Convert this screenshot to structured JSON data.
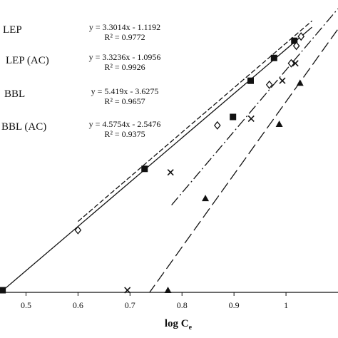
{
  "chart_data": {
    "type": "scatter",
    "title": "",
    "xlabel_main": "log C",
    "xlabel_sub": "e",
    "ylabel": "",
    "xlim": [
      0.45,
      1.1
    ],
    "ylim": [
      0.37,
      2.55
    ],
    "x_ticks": [
      0.5,
      0.6,
      0.7,
      0.8,
      0.9,
      1.0
    ],
    "x_tick_labels": [
      "0.5",
      "0.6",
      "0.7",
      "0.8",
      "0.9",
      "1"
    ],
    "grid": false,
    "legend_position": "top-left",
    "series": [
      {
        "name": "LEP",
        "marker": "filled-square",
        "line_style": "solid",
        "equation": "y = 3.3014x - 1.1192",
        "r2": "R² = 0.9772",
        "slope": 3.3014,
        "intercept": -1.1192,
        "fit_x_range": [
          0.45,
          1.05
        ],
        "x": [
          0.455,
          0.728,
          0.898,
          0.932,
          0.977,
          1.016
        ],
        "y": [
          0.386,
          1.291,
          1.678,
          1.948,
          2.118,
          2.246
        ]
      },
      {
        "name": "LEP (AC)",
        "marker": "open-diamond",
        "line_style": "short-dash",
        "equation": "y = 3.3236x - 1.0956",
        "r2": "R² = 0.9926",
        "slope": 3.3236,
        "intercept": -1.0956,
        "fit_x_range": [
          0.6,
          1.05
        ],
        "x": [
          0.6,
          0.868,
          0.968,
          1.01,
          1.02,
          1.029
        ],
        "y": [
          0.834,
          1.615,
          1.918,
          2.078,
          2.208,
          2.278
        ]
      },
      {
        "name": "BBL",
        "marker": "x-cross",
        "line_style": "long-dash",
        "equation": "y = 5.419x - 3.6275",
        "r2": "R² = 0.9657",
        "slope": 5.419,
        "intercept": -3.6275,
        "fit_x_range": [
          0.7,
          1.11
        ],
        "x": [
          0.695,
          0.778,
          0.933,
          0.993,
          1.018
        ],
        "y": [
          0.386,
          1.265,
          1.665,
          1.948,
          2.078
        ]
      },
      {
        "name": "BBL (AC)",
        "marker": "filled-triangle",
        "line_style": "dash-dot",
        "equation": "y = 4.5754x - 2.5476",
        "r2": "R² = 0.9375",
        "slope": 4.5754,
        "intercept": -2.5476,
        "fit_x_range": [
          0.78,
          1.1
        ],
        "x": [
          0.773,
          0.845,
          0.987,
          1.027
        ],
        "y": [
          0.386,
          1.071,
          1.625,
          1.931
        ]
      }
    ]
  }
}
